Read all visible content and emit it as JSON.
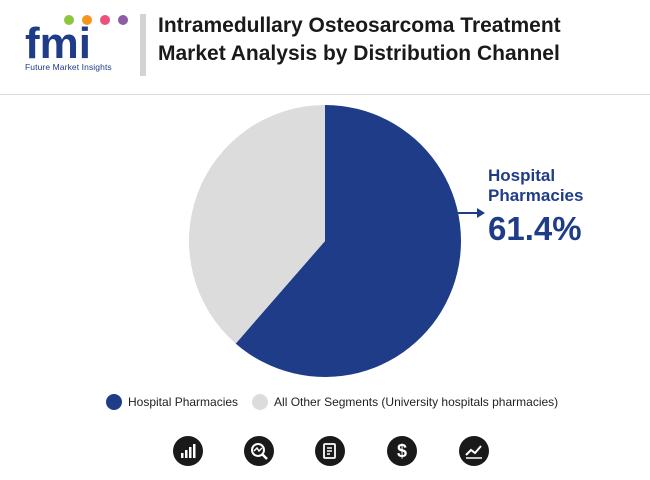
{
  "header": {
    "logo_text": "fmi",
    "logo_caption": "Future Market Insights",
    "title_line1": "Intramedullary Osteosarcoma Treatment",
    "title_line2": "Market Analysis by Distribution Channel"
  },
  "chart_data": {
    "type": "pie",
    "slices": [
      {
        "label": "Hospital Pharmacies",
        "value": 61.4,
        "color": "#1f3c88"
      },
      {
        "label": "All Other Segments (University hospitals pharmacies)",
        "value": 38.6,
        "color": "#dcdcdc"
      }
    ],
    "callout": {
      "label": "Hospital Pharmacies",
      "value_text": "61.4%"
    },
    "legend_position": "bottom"
  },
  "footer_icons": [
    "bar-chart-icon",
    "search-analytics-icon",
    "report-document-icon",
    "dollar-icon",
    "trend-chart-icon"
  ]
}
